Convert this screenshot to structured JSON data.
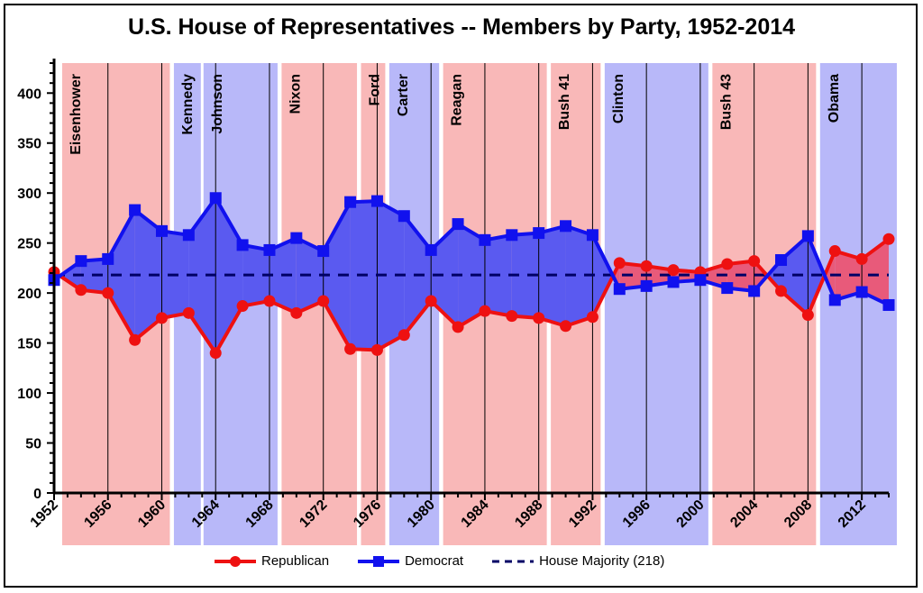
{
  "chart_data": {
    "type": "line",
    "title": "U.S. House of Representatives -- Members by Party, 1952-2014",
    "xlabel": "",
    "ylabel": "",
    "ylim": [
      0,
      430
    ],
    "xlim": [
      1952,
      2014
    ],
    "yticks": [
      0,
      50,
      100,
      150,
      200,
      250,
      300,
      350,
      400
    ],
    "xticks": [
      1952,
      1956,
      1960,
      1964,
      1968,
      1972,
      1976,
      1980,
      1984,
      1988,
      1992,
      1996,
      2000,
      2004,
      2008,
      2012
    ],
    "x": [
      1952,
      1954,
      1956,
      1958,
      1960,
      1962,
      1964,
      1966,
      1968,
      1970,
      1972,
      1974,
      1976,
      1978,
      1980,
      1982,
      1984,
      1986,
      1988,
      1990,
      1992,
      1994,
      1996,
      1998,
      2000,
      2002,
      2004,
      2006,
      2008,
      2010,
      2012,
      2014
    ],
    "series": [
      {
        "name": "Republican",
        "color": "#ee1111",
        "marker": "circle",
        "values": [
          221,
          203,
          200,
          153,
          175,
          180,
          140,
          187,
          192,
          180,
          192,
          144,
          143,
          158,
          192,
          166,
          182,
          177,
          175,
          167,
          176,
          230,
          227,
          223,
          221,
          229,
          232,
          202,
          178,
          242,
          234,
          254
        ]
      },
      {
        "name": "Democrat",
        "color": "#1111ee",
        "marker": "square",
        "values": [
          213,
          232,
          234,
          283,
          262,
          258,
          295,
          248,
          243,
          255,
          242,
          291,
          292,
          277,
          243,
          269,
          253,
          258,
          260,
          267,
          258,
          204,
          207,
          211,
          213,
          205,
          202,
          233,
          257,
          193,
          201,
          188
        ]
      },
      {
        "name": "House Majority (218)",
        "color": "#000066",
        "style": "dashed",
        "value": 218
      }
    ],
    "presidencies": [
      {
        "name": "Eisenhower",
        "start": 1952.6,
        "end": 1960.6,
        "party": "R"
      },
      {
        "name": "Kennedy",
        "start": 1960.9,
        "end": 1962.9,
        "party": "D"
      },
      {
        "name": "Johnson",
        "start": 1963.1,
        "end": 1968.6,
        "party": "D"
      },
      {
        "name": "Nixon",
        "start": 1968.9,
        "end": 1974.5,
        "party": "R"
      },
      {
        "name": "Ford",
        "start": 1974.8,
        "end": 1976.6,
        "party": "R"
      },
      {
        "name": "Carter",
        "start": 1976.9,
        "end": 1980.6,
        "party": "D"
      },
      {
        "name": "Reagan",
        "start": 1980.9,
        "end": 1988.6,
        "party": "R"
      },
      {
        "name": "Bush 41",
        "start": 1988.9,
        "end": 1992.6,
        "party": "R"
      },
      {
        "name": "Clinton",
        "start": 1992.9,
        "end": 2000.6,
        "party": "D"
      },
      {
        "name": "Bush 43",
        "start": 2000.9,
        "end": 2008.6,
        "party": "R"
      },
      {
        "name": "Obama",
        "start": 2008.9,
        "end": 2014.6,
        "party": "D"
      }
    ],
    "colors": {
      "rep_band": "#f9b8b8",
      "dem_band": "#b8b8f9",
      "dem_fill": "#5a5af0",
      "rep_fill": "#e85a7a"
    },
    "legend": {
      "position": "bottom"
    },
    "grid": false
  }
}
